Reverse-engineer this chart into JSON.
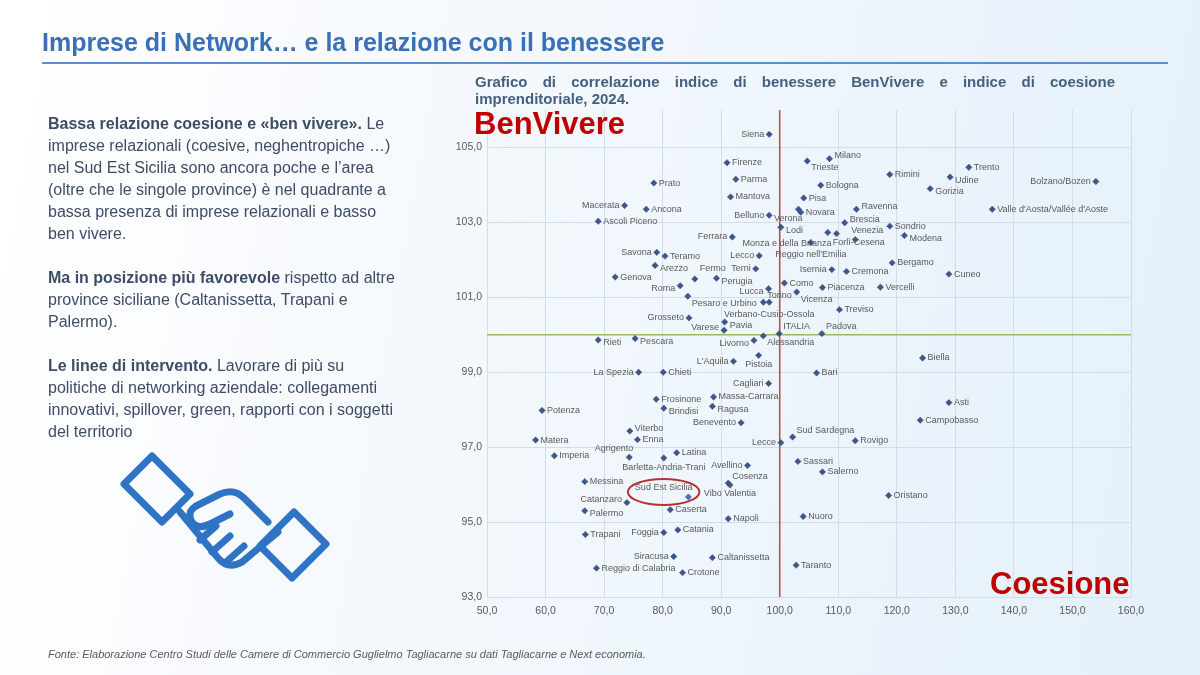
{
  "chart_data": {
    "type": "scatter",
    "title": "Imprese di Network… e la relazione con il benessere",
    "subtitle": "Grafico di correlazione indice di benessere BenVivere e indice di coesione imprenditoriale, 2024.",
    "xlabel": "Coesione",
    "ylabel": "BenVivere",
    "series": [
      {
        "color": "#3d5687",
        "x": [
          98.2,
          91.0,
          104.7,
          108.5,
          132.3,
          118.8,
          129.1,
          92.5,
          154.0,
          78.5,
          107.0,
          125.7,
          91.6,
          104.1,
          73.5,
          77.2,
          103.2,
          103.6,
          113.1,
          136.3,
          98.2,
          69.0,
          111.1,
          118.8,
          100.2,
          108.2,
          109.7,
          121.3,
          91.9,
          105.3,
          112.9,
          79.0,
          80.4,
          96.5,
          78.7,
          119.2,
          95.9,
          108.9,
          111.4,
          128.9,
          71.9,
          85.5,
          89.2,
          100.8,
          83.0,
          107.3,
          117.2,
          98.1,
          102.9,
          84.3,
          97.2,
          98.2,
          110.2,
          84.5,
          90.6,
          90.5,
          97.2,
          99.9,
          107.2,
          69.0,
          75.3,
          95.6,
          96.4,
          124.4,
          92.1,
          75.9,
          80.1,
          106.3,
          98.1,
          88.7,
          78.9,
          128.9,
          88.5,
          80.2,
          59.4,
          124.0,
          93.4,
          74.4,
          102.2,
          75.7,
          58.3,
          112.9,
          100.2,
          82.4,
          61.5,
          74.3,
          80.2,
          103.1,
          94.5,
          107.3,
          66.7,
          91.5,
          91.2,
          118.6,
          73.9,
          81.3,
          66.7,
          104.0,
          91.2,
          82.6,
          80.2,
          66.8,
          81.9,
          88.5,
          102.8,
          68.7,
          83.4
        ],
        "values": [
          105.35,
          104.59,
          104.64,
          104.7,
          104.47,
          104.28,
          104.21,
          104.15,
          104.09,
          104.05,
          103.99,
          103.9,
          103.68,
          103.65,
          103.45,
          103.35,
          103.35,
          103.27,
          103.35,
          103.35,
          103.19,
          103.03,
          102.99,
          102.9,
          102.87,
          102.73,
          102.7,
          102.65,
          102.61,
          102.46,
          102.54,
          102.2,
          102.1,
          102.11,
          101.85,
          101.92,
          101.76,
          101.74,
          101.69,
          101.62,
          101.54,
          101.49,
          101.51,
          101.38,
          101.31,
          101.26,
          101.27,
          101.23,
          101.14,
          101.03,
          100.87,
          100.87,
          100.67,
          100.45,
          100.34,
          100.12,
          99.97,
          100.03,
          100.03,
          99.86,
          99.9,
          99.85,
          99.45,
          99.38,
          99.29,
          99.0,
          99.0,
          98.98,
          98.7,
          98.34,
          98.28,
          98.19,
          98.09,
          98.04,
          97.98,
          97.72,
          97.65,
          97.43,
          97.27,
          97.2,
          97.19,
          97.17,
          97.12,
          96.85,
          96.77,
          96.73,
          96.71,
          96.62,
          96.51,
          96.34,
          96.08,
          95.99,
          96.04,
          95.71,
          95.52,
          95.33,
          95.3,
          95.15,
          95.09,
          94.79,
          94.72,
          94.67,
          94.08,
          94.05,
          93.85,
          93.77,
          93.65
        ],
        "value_labels": [
          "Siena",
          "Firenze",
          "Trieste",
          "Milano",
          "Trento",
          "Rimini",
          "Udine",
          "Parma",
          "Bolzano/Bozen",
          "Prato",
          "Bologna",
          "Gorizia",
          "Mantova",
          "Pisa",
          "Macerata",
          "Ancona",
          "Verona",
          "Novara",
          "Ravenna",
          "Valle d'Aosta/Vallée d'Aoste",
          "Belluno",
          "Ascoli Piceno",
          "Brescia",
          "Sondrio",
          "Lodi",
          "Forlì-Cesena",
          "Monza e della Brianza",
          "Modena",
          "Ferrara",
          "Reggio nell'Emilia",
          "Venezia",
          "Savona",
          "Teramo",
          "Lecco",
          "Arezzo",
          "Bergamo",
          "Terni",
          "Isernia",
          "Cremona",
          "Cuneo",
          "Genova",
          "Fermo",
          "Perugia",
          "Como",
          "Roma",
          "Piacenza",
          "Vercelli",
          "Lucca",
          "Vicenza",
          "Pesaro e Urbino",
          "Torino",
          "Verbano-Cusio-Ossola",
          "Treviso",
          "Grosseto",
          "Pavia",
          "Varese",
          "Alessandria",
          "ITALIA",
          "Padova",
          "Rieti",
          "Pescara",
          "Livorno",
          "Pistoia",
          "Biella",
          "L'Aquila",
          "La Spezia",
          "Chieti",
          "Bari",
          "Cagliari",
          "Massa-Carrara",
          "Frosinone",
          "Asti",
          "Ragusa",
          "Brindisi",
          "Potenza",
          "Campobasso",
          "Benevento",
          "Viterbo",
          "Sud Sardegna",
          "Enna",
          "Matera",
          "Rovigo",
          "Lecce",
          "Latina",
          "Imperia",
          "Agrigento",
          "Barletta-Andria-Trani",
          "Sassari",
          "Avellino",
          "Salerno",
          "Messina",
          "Vibo Valentia",
          "Cosenza",
          "Oristano",
          "Catanzaro",
          "Caserta",
          "Palermo",
          "Nuoro",
          "Napoli",
          "Catania",
          "Foggia",
          "Trapani",
          "Siracusa",
          "Caltanissetta",
          "Taranto",
          "Reggio di Calabria",
          "Crotone"
        ]
      },
      {
        "color": "#4472c4",
        "x": [
          84.4
        ],
        "values": [
          95.67
        ],
        "value_labels": [
          "Sud Est Sicilia"
        ]
      }
    ],
    "xlim": [
      50,
      160
    ],
    "xticks": [
      {
        "value": 50,
        "label": "50,0"
      },
      {
        "value": 60,
        "label": "60,0"
      },
      {
        "value": 70,
        "label": "70,0"
      },
      {
        "value": 80,
        "label": "80,0"
      },
      {
        "value": 90,
        "label": "90,0"
      },
      {
        "value": 100,
        "label": "100,0"
      },
      {
        "value": 110,
        "label": "110,0"
      },
      {
        "value": 120,
        "label": "120,0"
      },
      {
        "value": 130,
        "label": "130,0"
      },
      {
        "value": 140,
        "label": "140,0"
      },
      {
        "value": 150,
        "label": "150,0"
      },
      {
        "value": 160,
        "label": "160,0"
      }
    ],
    "ylim": [
      93,
      106
    ],
    "yticks": [
      {
        "value": 93,
        "label": "93,0"
      },
      {
        "value": 95,
        "label": "95,0"
      },
      {
        "value": 97,
        "label": "97,0"
      },
      {
        "value": 99,
        "label": "99,0"
      },
      {
        "value": 101,
        "label": "101,0"
      },
      {
        "value": 103,
        "label": "103,0"
      },
      {
        "value": 105,
        "label": "105,0"
      }
    ],
    "ref_lines": [
      {
        "axis": "x",
        "value": 100,
        "color": "#c0504d"
      },
      {
        "axis": "y",
        "value": 100,
        "color": "#9bbb59"
      }
    ],
    "grid": true,
    "marker": "diamond",
    "annotations": [
      "Bassa relazione coesione e «ben vivere».",
      "Le imprese relazionali (coesive, neghentropiche …) nel Sud Est Sicilia sono ancora poche e l’area (oltre che le singole province) è nel quadrante a bassa presenza di imprese relazionali e basso ben vivere.",
      "Ma in posizione più favorevole",
      "rispetto ad altre province siciliane (Caltanissetta, Trapani e Palermo).",
      "Le linee di intervento.",
      "Lavorare di più su politiche di networking aziendale: collegamenti innovativi, spillover, green, rapporti con i soggetti del territorio",
      "Fonte: Elaborazione Centro Studi delle Camere di Commercio Guglielmo Tagliacarne su dati Tagliacarne e Next economia."
    ]
  }
}
